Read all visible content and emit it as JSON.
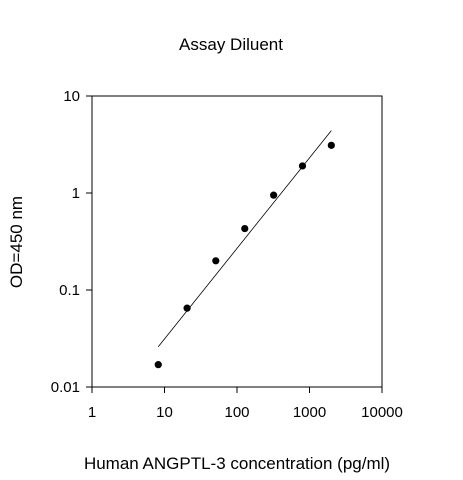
{
  "chart_data": {
    "type": "scatter",
    "title": "Assay Diluent",
    "xlabel": "Human ANGPTL-3 concentration (pg/ml)",
    "ylabel": "OD=450 nm",
    "x_scale": "log",
    "y_scale": "log",
    "xlim": [
      1,
      10000
    ],
    "ylim": [
      0.01,
      10
    ],
    "x_ticks": [
      1,
      10,
      100,
      1000,
      10000
    ],
    "x_tick_labels": [
      "1",
      "10",
      "100",
      "1000",
      "10000"
    ],
    "y_ticks": [
      0.01,
      0.1,
      1,
      10
    ],
    "y_tick_labels": [
      "0.01",
      "0.1",
      "1",
      "10"
    ],
    "grid": false,
    "series": [
      {
        "points": [
          {
            "x": 8.2,
            "y": 0.017
          },
          {
            "x": 20.5,
            "y": 0.065
          },
          {
            "x": 51,
            "y": 0.2
          },
          {
            "x": 128,
            "y": 0.43
          },
          {
            "x": 320,
            "y": 0.95
          },
          {
            "x": 800,
            "y": 1.9
          },
          {
            "x": 2000,
            "y": 3.1
          }
        ],
        "marker_color": "#000000"
      }
    ],
    "fit_line": {
      "x": [
        8.2,
        2000
      ],
      "y": [
        0.026,
        4.4
      ],
      "color": "#000000"
    }
  }
}
